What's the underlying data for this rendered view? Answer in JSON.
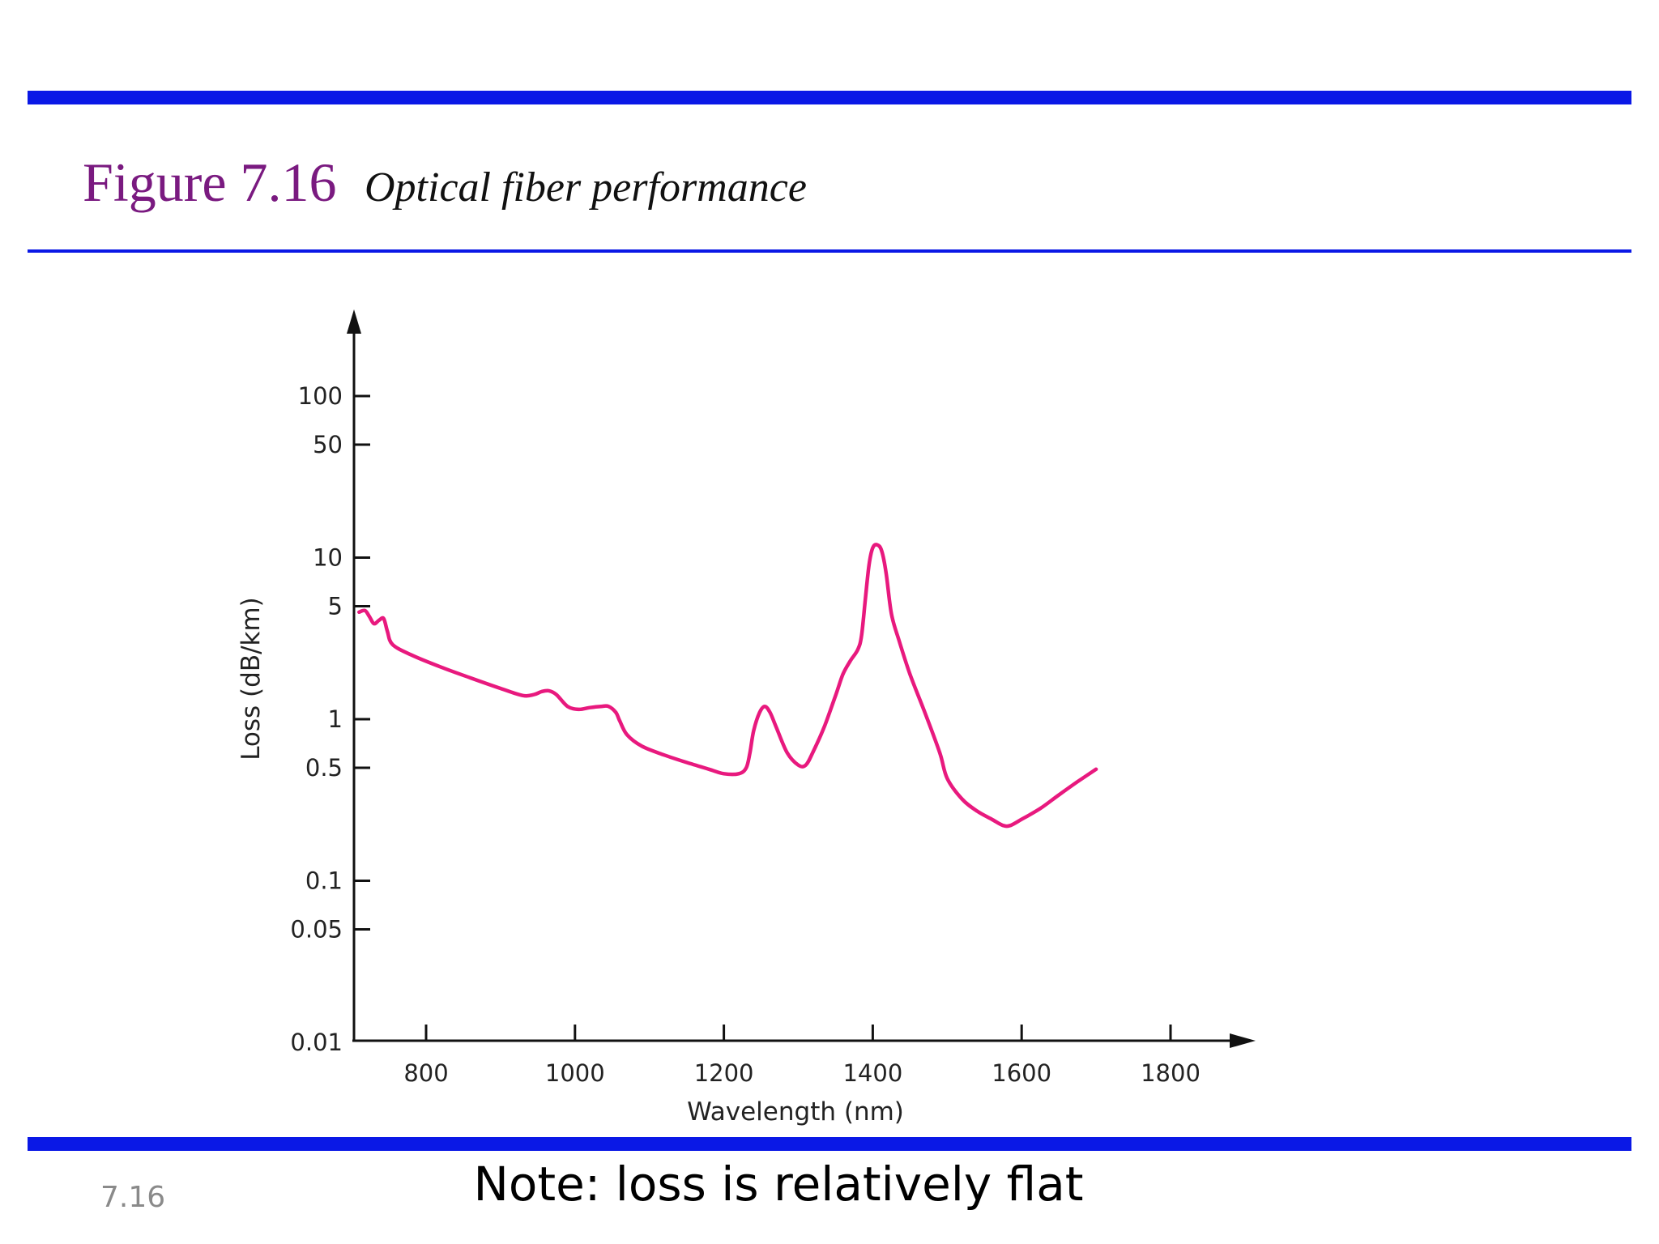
{
  "slide": {
    "figure_label": "Figure 7.16",
    "figure_caption": "Optical fiber performance",
    "slide_number": "7.16",
    "note": "Note: loss is relatively flat"
  },
  "colors": {
    "rule": "#0a18e6",
    "curve": "#e8197e",
    "figure_label": "#7a1a80"
  },
  "chart_data": {
    "type": "line",
    "title": "",
    "xlabel": "Wavelength (nm)",
    "ylabel": "Loss (dB/km)",
    "y_scale": "log",
    "xlim": [
      700,
      1900
    ],
    "ylim": [
      0.01,
      300
    ],
    "x_ticks": [
      800,
      1000,
      1200,
      1400,
      1600,
      1800
    ],
    "x_tick_labels": [
      "800",
      "1000",
      "1200",
      "1400",
      "1600",
      "1800"
    ],
    "y_ticks": [
      0.01,
      0.05,
      0.1,
      0.5,
      1,
      5,
      10,
      50,
      100
    ],
    "y_tick_labels": [
      "0.01",
      "0.05",
      "0.1",
      "0.5",
      "1",
      "5",
      "10",
      "50",
      "100"
    ],
    "grid": false,
    "series": [
      {
        "x": [
          710,
          718,
          724,
          730,
          737,
          743,
          748,
          755,
          780,
          820,
          860,
          900,
          930,
          945,
          955,
          965,
          975,
          990,
          1005,
          1020,
          1035,
          1045,
          1055,
          1060,
          1070,
          1090,
          1120,
          1150,
          1180,
          1200,
          1220,
          1230,
          1235,
          1240,
          1248,
          1255,
          1262,
          1270,
          1285,
          1300,
          1310,
          1320,
          1335,
          1350,
          1360,
          1370,
          1380,
          1385,
          1390,
          1395,
          1400,
          1406,
          1412,
          1418,
          1425,
          1435,
          1450,
          1470,
          1490,
          1500,
          1520,
          1540,
          1560,
          1575,
          1585,
          1600,
          1625,
          1650,
          1675,
          1700
        ],
        "y": [
          4.6,
          4.7,
          4.3,
          3.9,
          4.1,
          4.2,
          3.5,
          2.9,
          2.5,
          2.1,
          1.8,
          1.55,
          1.4,
          1.42,
          1.48,
          1.5,
          1.42,
          1.2,
          1.15,
          1.18,
          1.2,
          1.2,
          1.1,
          0.98,
          0.8,
          0.68,
          0.6,
          0.54,
          0.49,
          0.46,
          0.46,
          0.5,
          0.62,
          0.85,
          1.1,
          1.2,
          1.1,
          0.9,
          0.62,
          0.52,
          0.52,
          0.63,
          0.9,
          1.4,
          1.9,
          2.3,
          2.7,
          3.3,
          5.5,
          9.0,
          11.5,
          12.0,
          11.0,
          8.0,
          4.5,
          3.1,
          1.9,
          1.1,
          0.62,
          0.43,
          0.32,
          0.27,
          0.24,
          0.22,
          0.22,
          0.24,
          0.28,
          0.34,
          0.41,
          0.49
        ]
      }
    ]
  }
}
